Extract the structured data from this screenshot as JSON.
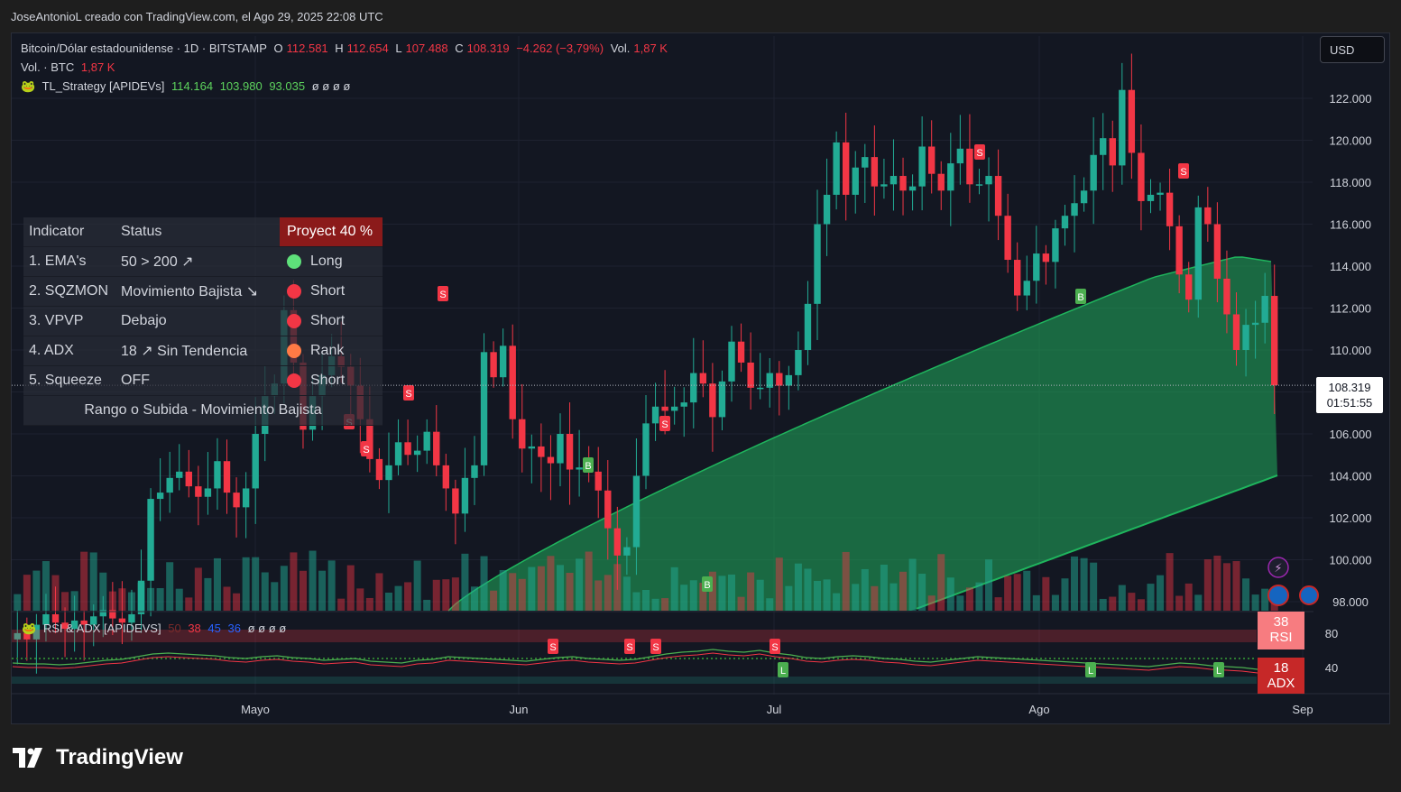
{
  "credit": "JoseAntonioL creado con TradingView.com, el Ago 29, 2025 22:08 UTC",
  "legend": {
    "symbol": "Bitcoin/Dólar estadounidense · 1D · BITSTAMP",
    "o_label": "O",
    "o_value": "112.581",
    "h_label": "H",
    "h_value": "112.654",
    "l_label": "L",
    "l_value": "107.488",
    "c_label": "C",
    "c_value": "108.319",
    "change": "−4.262 (−3,79%)",
    "vol_label": "Vol.",
    "vol_value": "1,87 K",
    "vol_btc_label": "Vol. · BTC",
    "vol_btc_value": "1,87 K",
    "strategy_name": "TL_Strategy [APIDEVs]",
    "strategy_v1": "114.164",
    "strategy_v2": "103.980",
    "strategy_v3": "93.035",
    "strategy_empty": "ø  ø  ø  ø"
  },
  "currency": "USD",
  "table": {
    "header": [
      "Indicator",
      "Status",
      "Proyect 40 %"
    ],
    "rows": [
      {
        "ind": "1. EMA's",
        "status": "50 > 200 ↗",
        "signal": "Long",
        "color": "#5ee07a"
      },
      {
        "ind": "2. SQZMON",
        "status": "Movimiento Bajista ↘",
        "signal": "Short",
        "color": "#f23645"
      },
      {
        "ind": "3. VPVP",
        "status": "Debajo",
        "signal": "Short",
        "color": "#f23645"
      },
      {
        "ind": "4. ADX",
        "status": "18 ↗ Sin Tendencia",
        "signal": "Rank",
        "color": "#ff7a45"
      },
      {
        "ind": "5. Squeeze",
        "status": "OFF",
        "signal": "Short",
        "color": "#f23645"
      }
    ],
    "footer": "Rango o Subida - Movimiento Bajista"
  },
  "price_label": {
    "price": "108.319",
    "countdown": "01:51:55"
  },
  "indicator_pane": {
    "name": "RSI & ADX [APIDEVS]",
    "v1": "50",
    "v2": "38",
    "v3": "45",
    "v4": "36",
    "empty": "ø  ø  ø  ø",
    "rsi_value": "38",
    "rsi_label": "RSI",
    "adx_value": "18",
    "adx_label": "ADX",
    "levels": [
      "80",
      "40"
    ]
  },
  "brand": "TradingView",
  "colors": {
    "up": "#22ab94",
    "down": "#f23645",
    "band": "#1f9d55",
    "bg": "#131722"
  },
  "chart_data": {
    "type": "candlestick",
    "y_ticks": [
      "122.000",
      "120.000",
      "118.000",
      "116.000",
      "114.000",
      "112.000",
      "110.000",
      "108.000",
      "106.000",
      "104.000",
      "102.000",
      "100.000",
      "98.000"
    ],
    "y_values": [
      122000,
      120000,
      118000,
      116000,
      114000,
      112000,
      110000,
      108000,
      106000,
      104000,
      102000,
      100000,
      98000
    ],
    "x_ticks": [
      "Mayo",
      "Jun",
      "Jul",
      "Ago",
      "Sep"
    ],
    "current_price": 108319,
    "closes": [
      96500,
      96200,
      96900,
      97400,
      97000,
      96700,
      97100,
      96900,
      97300,
      97600,
      97200,
      97000,
      97400,
      99000,
      102900,
      103200,
      103900,
      104200,
      103500,
      103000,
      103400,
      104700,
      103200,
      102500,
      103400,
      106000,
      107800,
      108400,
      111900,
      109400,
      106200,
      107800,
      108800,
      109700,
      109200,
      108300,
      106700,
      104800,
      103800,
      104500,
      105600,
      105000,
      105200,
      106100,
      104500,
      103400,
      102200,
      103900,
      104500,
      109900,
      108700,
      110200,
      106700,
      105300,
      105400,
      104900,
      104600,
      106000,
      104300,
      104400,
      104200,
      103300,
      101500,
      100200,
      100600,
      104000,
      106500,
      107300,
      107100,
      107300,
      107500,
      108900,
      108400,
      106800,
      108500,
      110400,
      109400,
      108200,
      108200,
      108900,
      108300,
      108800,
      110000,
      112200,
      116000,
      117400,
      119900,
      117400,
      118700,
      119200,
      117800,
      117900,
      118300,
      117600,
      117800,
      119700,
      118400,
      117600,
      118900,
      119600,
      117900,
      117900,
      118300,
      116400,
      114300,
      112600,
      113300,
      114600,
      114200,
      115800,
      116400,
      117000,
      117600,
      119300,
      120100,
      118800,
      122400,
      119400,
      117100,
      117400,
      117500,
      115900,
      113600,
      112400,
      116800,
      116000,
      113400,
      111700,
      110000,
      111200,
      111300,
      112580,
      108319
    ]
  },
  "rsi_data": {
    "rsi_line": [
      45,
      44,
      44,
      43,
      44,
      46,
      48,
      49,
      52,
      55,
      56,
      55,
      54,
      53,
      51,
      50,
      52,
      53,
      51,
      50,
      48,
      49,
      50,
      47,
      46,
      45,
      48,
      49,
      52,
      51,
      50,
      49,
      48,
      47,
      49,
      51,
      52,
      50,
      49,
      48,
      49,
      52,
      55,
      57,
      58,
      60,
      58,
      57,
      59,
      56,
      54,
      51,
      50,
      52,
      53,
      52,
      50,
      49,
      47,
      46,
      48,
      50,
      52,
      51,
      50,
      49,
      48,
      47,
      46,
      45,
      44,
      43,
      42,
      41,
      43,
      45,
      44,
      42,
      41,
      40,
      38
    ],
    "signals": [
      "S",
      "S",
      "S",
      "S",
      "L",
      "L",
      "L"
    ]
  }
}
